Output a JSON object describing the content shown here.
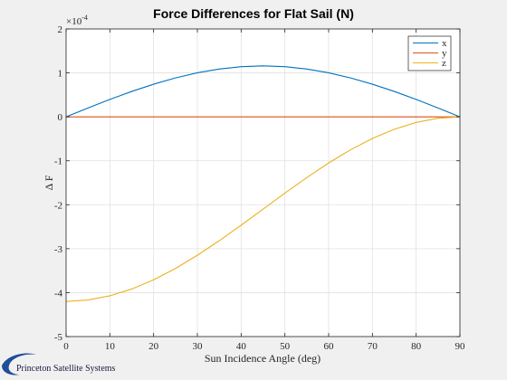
{
  "chart_data": {
    "type": "line",
    "title": "Force Differences for Flat Sail (N)",
    "xlabel": "Sun Incidence Angle (deg)",
    "ylabel": "Δ F",
    "xlim": [
      0,
      90
    ],
    "ylim": [
      -5,
      2
    ],
    "y_exponent_label": "×10",
    "y_exponent": "-4",
    "xticks": [
      0,
      10,
      20,
      30,
      40,
      50,
      60,
      70,
      80,
      90
    ],
    "yticks": [
      -5,
      -4,
      -3,
      -2,
      -1,
      0,
      1,
      2
    ],
    "grid": true,
    "legend_placement": "top-right",
    "x": [
      0,
      5,
      10,
      15,
      20,
      25,
      30,
      35,
      40,
      45,
      50,
      55,
      60,
      65,
      70,
      75,
      80,
      85,
      90
    ],
    "series": [
      {
        "name": "x",
        "color": "#0072bd",
        "values": [
          0,
          0.201,
          0.396,
          0.578,
          0.743,
          0.886,
          1.002,
          1.088,
          1.142,
          1.16,
          1.142,
          1.088,
          1.002,
          0.886,
          0.743,
          0.578,
          0.396,
          0.201,
          0
        ]
      },
      {
        "name": "y",
        "color": "#d95319",
        "values": [
          0,
          0,
          0,
          0,
          0,
          0,
          0,
          0,
          0,
          0,
          0,
          0,
          0,
          0,
          0,
          0,
          0,
          0,
          0
        ]
      },
      {
        "name": "z",
        "color": "#edb120",
        "values": [
          -4.2,
          -4.168,
          -4.073,
          -3.918,
          -3.709,
          -3.45,
          -3.15,
          -2.818,
          -2.465,
          -2.1,
          -1.735,
          -1.382,
          -1.05,
          -0.75,
          -0.491,
          -0.282,
          -0.127,
          -0.032,
          0
        ]
      }
    ]
  },
  "brand": {
    "text": "Princeton Satellite Systems",
    "logo_color": "#1f4e9a"
  }
}
